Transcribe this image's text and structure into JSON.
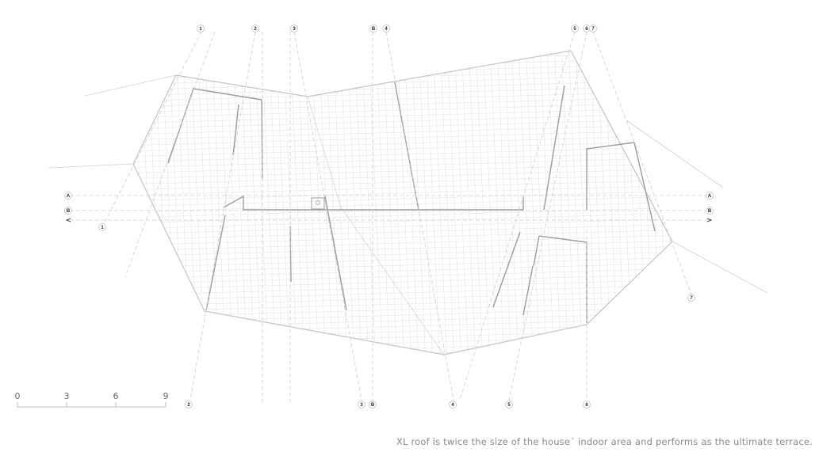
{
  "caption": "XL roof is twice the size of the house´ indoor area and performs as the ultimate terrace.",
  "scale_bar": {
    "labels": [
      "0",
      "3",
      "6",
      "9"
    ]
  },
  "section_markers": [
    "1",
    "2",
    "3",
    "4",
    "5",
    "6",
    "7",
    "A",
    "B"
  ],
  "colors": {
    "line": "#bdbdbd",
    "dark_line": "#9a9a9a",
    "grid": "#e4e4e4",
    "text": "#8a8a8a"
  }
}
